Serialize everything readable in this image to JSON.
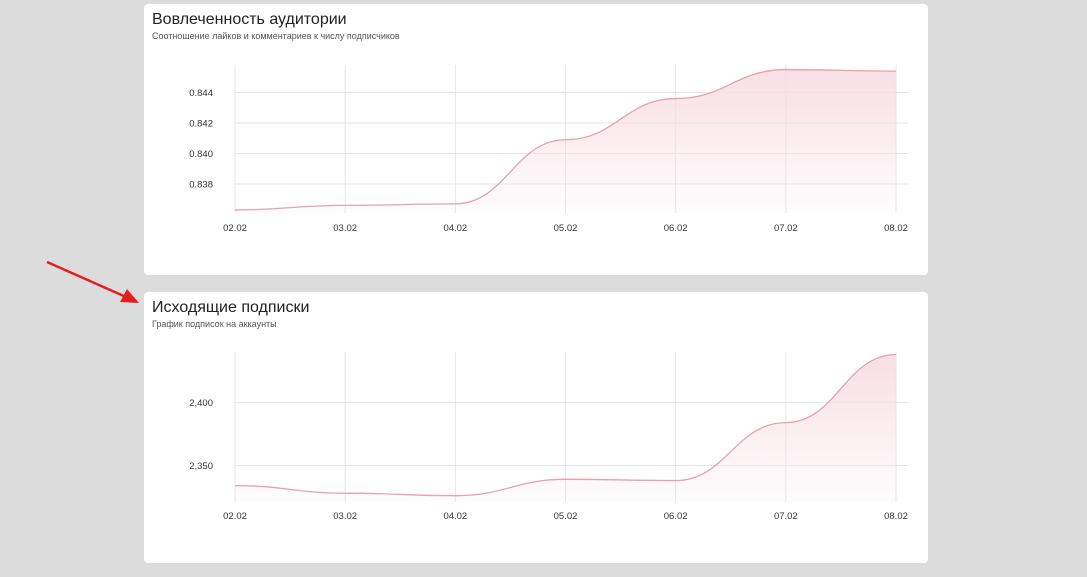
{
  "charts": [
    {
      "title": "Вовлеченность аудитории",
      "subtitle": "Соотношение лайков и комментариев к числу подписчиков"
    },
    {
      "title": "Исходящие подписки",
      "subtitle": "График подписок на аккаунты"
    }
  ],
  "colors": {
    "background": "#dcdcdc",
    "card": "#ffffff",
    "series_line": "#e8a0ad",
    "series_fill": "#f7dde3",
    "grid": "#e6e6e6",
    "annotation_arrow": "#e02020"
  },
  "chart_data": [
    {
      "type": "area",
      "title": "Вовлеченность аудитории",
      "subtitle": "Соотношение лайков и комментариев к числу подписчиков",
      "categories": [
        "02.02",
        "03.02",
        "04.02",
        "05.02",
        "06.02",
        "07.02",
        "08.02"
      ],
      "series": [
        {
          "values": [
            0.8363,
            0.8366,
            0.8367,
            0.8409,
            0.8436,
            0.8455,
            0.8454
          ]
        }
      ],
      "yticks": [
        0.838,
        0.84,
        0.842,
        0.844
      ],
      "ytick_labels": [
        "0.838",
        "0.840",
        "0.842",
        "0.844"
      ],
      "ylim": [
        0.8361,
        0.8458
      ],
      "xlabel": "",
      "ylabel": "",
      "grid": true,
      "legend": "none"
    },
    {
      "type": "area",
      "title": "Исходящие подписки",
      "subtitle": "График подписок на аккаунты",
      "categories": [
        "02.02",
        "03.02",
        "04.02",
        "05.02",
        "06.02",
        "07.02",
        "08.02"
      ],
      "series": [
        {
          "values": [
            2334,
            2328,
            2326,
            2339,
            2338,
            2384,
            2438
          ]
        }
      ],
      "yticks": [
        2350,
        2400
      ],
      "ytick_labels": [
        "2,350",
        "2,400"
      ],
      "ylim": [
        2321,
        2440
      ],
      "xlabel": "",
      "ylabel": "",
      "grid": true,
      "legend": "none"
    }
  ]
}
